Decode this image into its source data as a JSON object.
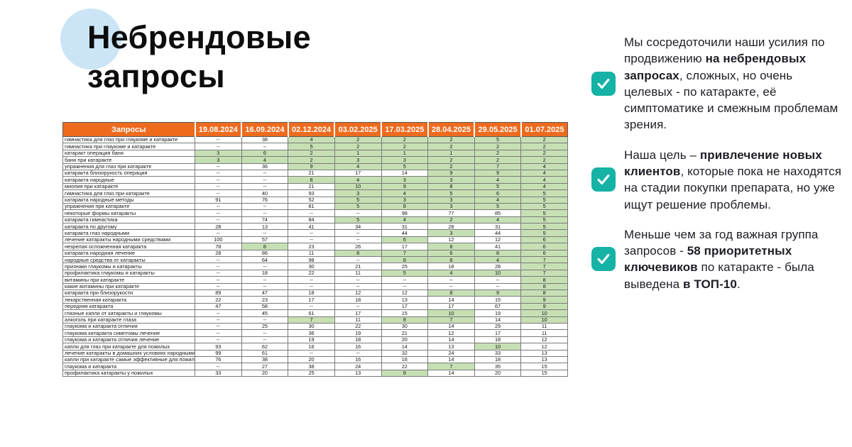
{
  "slide": {
    "title_line1": "Небрендовые",
    "title_line2": "запросы"
  },
  "colors": {
    "header_bg": "#EE6B1E",
    "header_text": "#FFFFFF",
    "green_cell": "#C6E0B4",
    "accent_teal": "#15B2A6",
    "title_circle": "#CBE5F6",
    "body_text": "#1D1D27"
  },
  "table": {
    "query_header": "Запросы",
    "date_headers": [
      "19.08.2024",
      "16.09.2024",
      "02.12.2024",
      "03.02.2025",
      "17.03.2025",
      "28.04.2025",
      "29.05.2025",
      "01.07.2025"
    ],
    "green_threshold": 10,
    "rows": [
      {
        "label": "гимнастика для глаз при глаукоме и катаракте",
        "values": [
          "--",
          "38",
          "4",
          "2",
          "2",
          "2",
          "5",
          "2"
        ]
      },
      {
        "label": "гимнастика при глаукоме и катаракте",
        "values": [
          "--",
          "--",
          "5",
          "2",
          "2",
          "2",
          "2",
          "2"
        ]
      },
      {
        "label": "катаракт операция баня",
        "values": [
          "3",
          "6",
          "2",
          "1",
          "1",
          "1",
          "2",
          "2"
        ]
      },
      {
        "label": "баня при катаракте",
        "values": [
          "3",
          "4",
          "2",
          "3",
          "3",
          "2",
          "2",
          "2"
        ]
      },
      {
        "label": "упражнения для глаз при катаракте",
        "values": [
          "--",
          "36",
          "9",
          "4",
          "5",
          "2",
          "7",
          "4"
        ]
      },
      {
        "label": "катаракта близорукость операция",
        "values": [
          "--",
          "--",
          "21",
          "17",
          "14",
          "9",
          "9",
          "4"
        ]
      },
      {
        "label": "катаракта народные",
        "values": [
          "--",
          "--",
          "8",
          "4",
          "3",
          "3",
          "4",
          "4"
        ]
      },
      {
        "label": "миопия при катаракте",
        "values": [
          "--",
          "--",
          "21",
          "10",
          "9",
          "8",
          "5",
          "4"
        ]
      },
      {
        "label": "гимнастика для глаз при катаракте",
        "values": [
          "--",
          "40",
          "93",
          "3",
          "4",
          "5",
          "6",
          "5"
        ]
      },
      {
        "label": "катаракта народные методы",
        "values": [
          "91",
          "76",
          "52",
          "5",
          "3",
          "3",
          "4",
          "5"
        ]
      },
      {
        "label": "упражнения при катаракте",
        "values": [
          "--",
          "--",
          "81",
          "5",
          "8",
          "3",
          "5",
          "5"
        ]
      },
      {
        "label": "некоторые формы катаракты",
        "values": [
          "--",
          "--",
          "--",
          "--",
          "98",
          "77",
          "85",
          "5"
        ]
      },
      {
        "label": "катаракта гимнастика",
        "values": [
          "--",
          "74",
          "84",
          "5",
          "4",
          "2",
          "4",
          "5"
        ]
      },
      {
        "label": "катаракта по другому",
        "values": [
          "28",
          "13",
          "41",
          "34",
          "31",
          "28",
          "31",
          "5"
        ]
      },
      {
        "label": "катаракта глаз народными",
        "values": [
          "--",
          "--",
          "--",
          "--",
          "44",
          "3",
          "44",
          "5"
        ]
      },
      {
        "label": "лечение катаракты народными средствами",
        "values": [
          "100",
          "57",
          "--",
          "--",
          "6",
          "12",
          "12",
          "6"
        ]
      },
      {
        "label": "незрелая осложненная катаракта",
        "values": [
          "78",
          "8",
          "23",
          "26",
          "17",
          "8",
          "41",
          "6"
        ]
      },
      {
        "label": "катаракта народная лечение",
        "values": [
          "28",
          "86",
          "11",
          "8",
          "7",
          "6",
          "8",
          "6"
        ]
      },
      {
        "label": "народные средства от катаракты",
        "values": [
          "--",
          "64",
          "98",
          "--",
          "8",
          "8",
          "4",
          "7"
        ]
      },
      {
        "label": "признаки глаукомы и катаракты",
        "values": [
          "--",
          "--",
          "30",
          "21",
          "25",
          "18",
          "28",
          "7"
        ]
      },
      {
        "label": "профилактика глаукомы и катаракты",
        "values": [
          "--",
          "18",
          "22",
          "11",
          "5",
          "4",
          "10",
          "7"
        ]
      },
      {
        "label": "витамины при катаракте",
        "values": [
          "--",
          "--",
          "--",
          "--",
          "--",
          "--",
          "--",
          "8"
        ]
      },
      {
        "label": "какие витамины при катаракте",
        "values": [
          "--",
          "--",
          "--",
          "--",
          "--",
          "--",
          "--",
          "8"
        ]
      },
      {
        "label": "катаракта при близорукости",
        "values": [
          "89",
          "47",
          "18",
          "12",
          "12",
          "8",
          "9",
          "8"
        ]
      },
      {
        "label": "лекарственная катаракта",
        "values": [
          "22",
          "23",
          "17",
          "18",
          "13",
          "14",
          "15",
          "9"
        ]
      },
      {
        "label": "передняя катаракта",
        "values": [
          "47",
          "58",
          "--",
          "--",
          "17",
          "17",
          "67",
          "9"
        ]
      },
      {
        "label": "глазные капли от катаракты и глаукомы",
        "values": [
          "--",
          "45",
          "61",
          "17",
          "15",
          "10",
          "19",
          "10"
        ]
      },
      {
        "label": "алкоголь при катаракте глаза",
        "values": [
          "--",
          "--",
          "7",
          "11",
          "8",
          "7",
          "14",
          "10"
        ]
      },
      {
        "label": "глаукома и катаракта отличия",
        "values": [
          "--",
          "25",
          "30",
          "22",
          "30",
          "14",
          "29",
          "11"
        ]
      },
      {
        "label": "глаукома катаракта симптомы лечение",
        "values": [
          "--",
          "--",
          "36",
          "19",
          "21",
          "12",
          "17",
          "11"
        ]
      },
      {
        "label": "глаукома и катаракта отличия лечение",
        "values": [
          "--",
          "--",
          "19",
          "18",
          "20",
          "14",
          "18",
          "12"
        ]
      },
      {
        "label": "капли для глаз при катаракте для пожилых",
        "values": [
          "93",
          "62",
          "16",
          "16",
          "14",
          "13",
          "10",
          "12"
        ]
      },
      {
        "label": "лечение катаракты в домашних условиях народными",
        "values": [
          "99",
          "61",
          "--",
          "--",
          "32",
          "24",
          "33",
          "13"
        ]
      },
      {
        "label": "капли при катаракте самые эффективные для пожилы",
        "values": [
          "76",
          "38",
          "20",
          "16",
          "16",
          "14",
          "18",
          "13"
        ]
      },
      {
        "label": "глаукома и катаракта",
        "values": [
          "--",
          "27",
          "38",
          "24",
          "22",
          "7",
          "35",
          "15"
        ]
      },
      {
        "label": "профилактика катаракты у пожилых",
        "values": [
          "33",
          "20",
          "25",
          "13",
          "8",
          "14",
          "20",
          "15"
        ]
      }
    ]
  },
  "panel": {
    "blocks": [
      {
        "icon": "check-icon",
        "segments": [
          {
            "text": "Мы сосредоточили наши усилия по продвижению ",
            "bold": false
          },
          {
            "text": "на небрендовых запросах",
            "bold": true
          },
          {
            "text": ", сложных, но очень целевых - по катаракте, её симптоматике и смежным проблемам зрения.",
            "bold": false
          }
        ]
      },
      {
        "icon": "check-icon",
        "segments": [
          {
            "text": "Наша цель – ",
            "bold": false
          },
          {
            "text": "привлечение новых клиентов",
            "bold": true
          },
          {
            "text": ", которые пока не находятся на стадии покупки препарата, но уже ищут решение проблемы.",
            "bold": false
          }
        ]
      },
      {
        "icon": "check-icon",
        "segments": [
          {
            "text": "Меньше чем за год важная группа запросов - ",
            "bold": false
          },
          {
            "text": "58 приоритетных ключевиков",
            "bold": true
          },
          {
            "text": " по катаракте - была выведена ",
            "bold": false
          },
          {
            "text": "в ТОП-10",
            "bold": true
          },
          {
            "text": ".",
            "bold": false
          }
        ]
      }
    ]
  }
}
